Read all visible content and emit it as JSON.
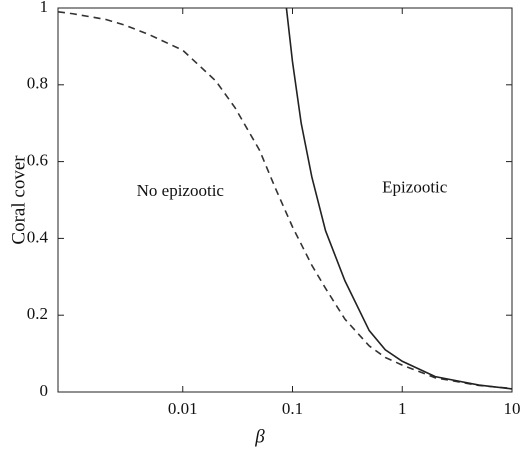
{
  "chart_data": {
    "type": "line",
    "xlabel": "β",
    "ylabel": "Coral cover",
    "xscale": "log",
    "xlim": [
      0.00073,
      10
    ],
    "ylim": [
      0,
      1
    ],
    "xticks": [
      0.01,
      0.1,
      1,
      10
    ],
    "yticks": [
      0,
      0.2,
      0.4,
      0.6,
      0.8,
      1
    ],
    "annotations": [
      {
        "text": "No epizootic",
        "x": 0.0095,
        "y": 0.52
      },
      {
        "text": "Epizootic",
        "x": 1.3,
        "y": 0.53
      }
    ],
    "series": [
      {
        "color": "#333333",
        "linestyle": "dashed",
        "x": [
          0.00073,
          0.001,
          0.002,
          0.003,
          0.005,
          0.01,
          0.02,
          0.03,
          0.05,
          0.07,
          0.1,
          0.15,
          0.2,
          0.3,
          0.5,
          0.7,
          1,
          2,
          5,
          10
        ],
        "values": [
          0.99,
          0.985,
          0.97,
          0.955,
          0.93,
          0.89,
          0.81,
          0.74,
          0.63,
          0.53,
          0.43,
          0.33,
          0.27,
          0.19,
          0.12,
          0.09,
          0.07,
          0.037,
          0.017,
          0.009
        ]
      },
      {
        "color": "#222222",
        "linestyle": "solid",
        "x": [
          0.088,
          0.1,
          0.12,
          0.15,
          0.2,
          0.3,
          0.5,
          0.7,
          1,
          2,
          5,
          10
        ],
        "values": [
          1,
          0.86,
          0.7,
          0.56,
          0.42,
          0.29,
          0.16,
          0.11,
          0.08,
          0.04,
          0.018,
          0.008
        ]
      }
    ]
  }
}
